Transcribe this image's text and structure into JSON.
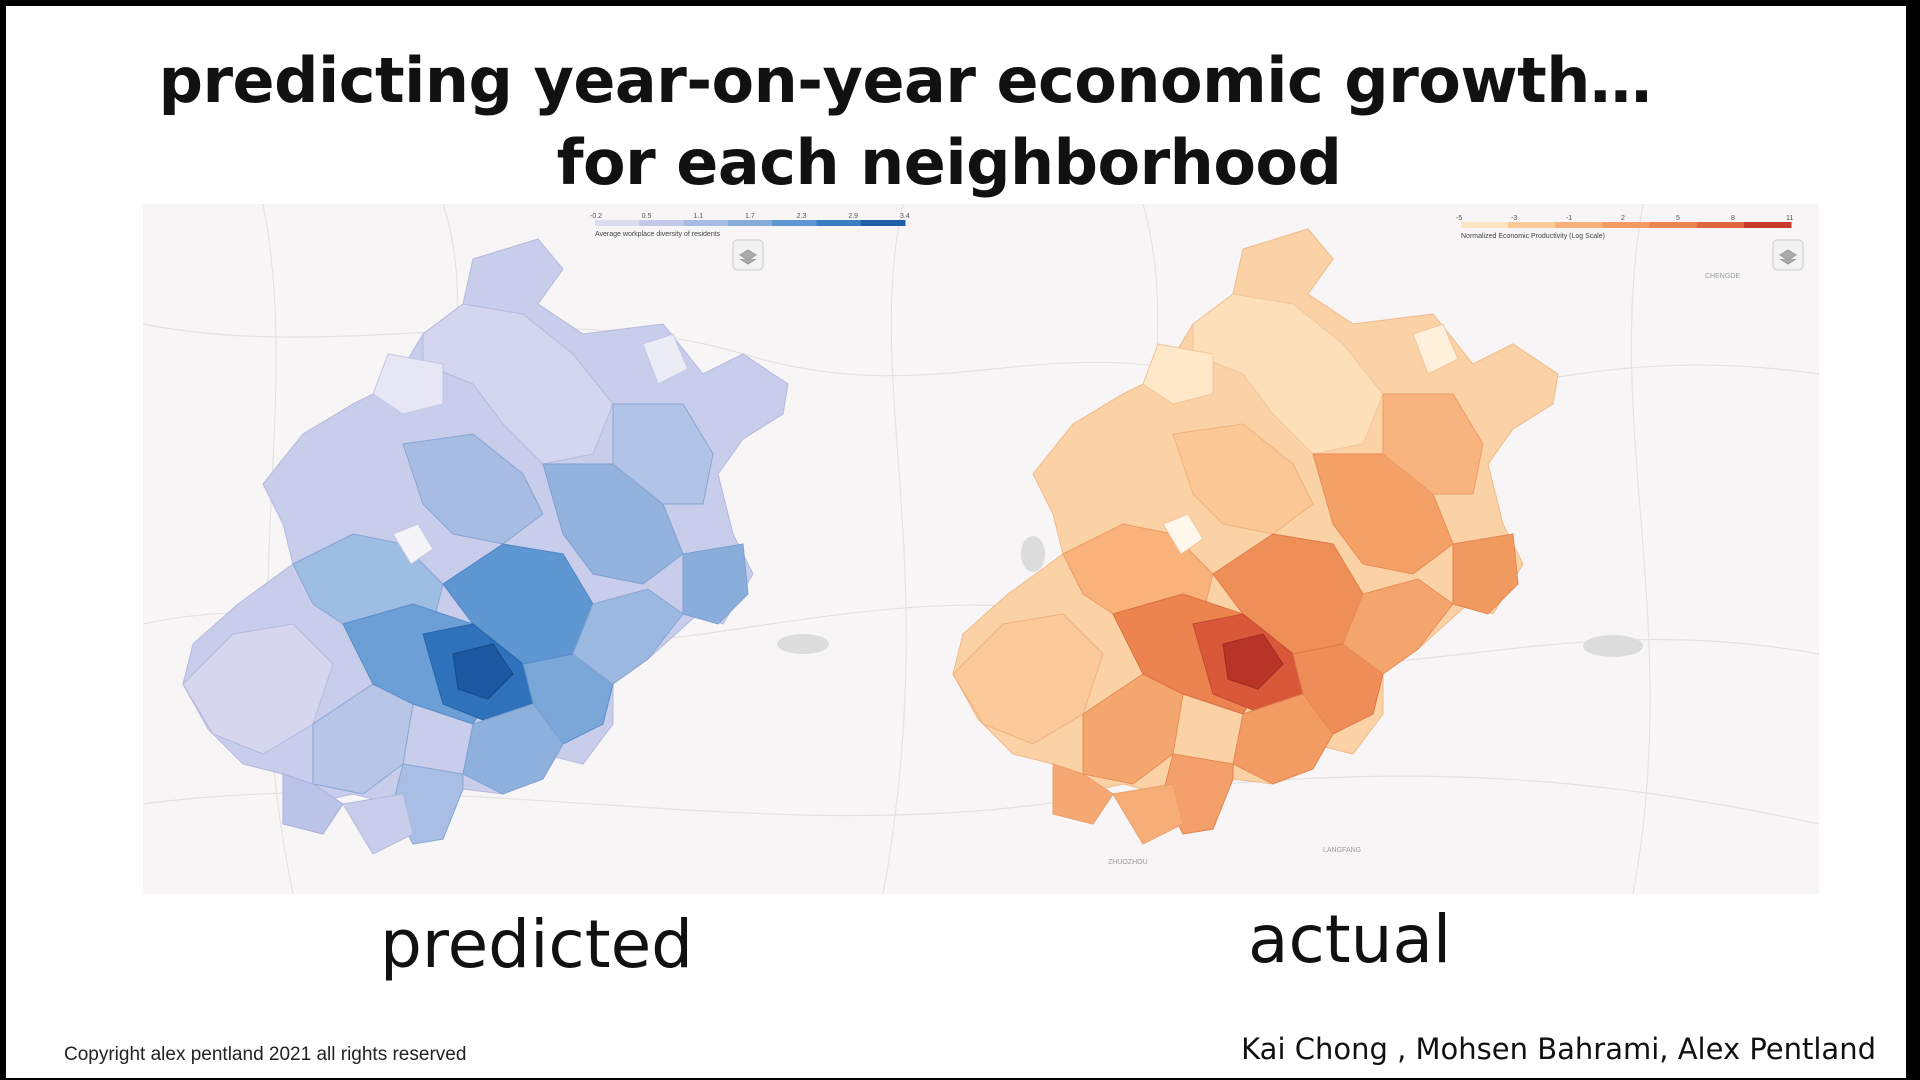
{
  "slide": {
    "title_line1": "predicting year-on-year economic growth…",
    "title_line2": "for each neighborhood",
    "caption_left": "predicted",
    "caption_right": "actual",
    "copyright": "Copyright alex pentland 2021 all rights reserved",
    "authors": "Kai Chong , Mohsen Bahrami, Alex Pentland"
  },
  "maps": {
    "predicted": {
      "legend_title": "Average workplace diversity of residents",
      "legend_ticks": [
        "-0.2",
        "0.5",
        "1.1",
        "1.7",
        "2.3",
        "2.9",
        "3.4"
      ],
      "colors": [
        "#dcdcf0",
        "#c4c9e9",
        "#a6bce3",
        "#86acdc",
        "#5f97d2",
        "#3a7dc2",
        "#1f5ea8"
      ],
      "layers_icon": "layers-icon"
    },
    "actual": {
      "legend_title": "Normalized Economic Productivity (Log Scale)",
      "legend_ticks": [
        "-5",
        "-3",
        "-1",
        "2",
        "5",
        "8",
        "11"
      ],
      "colors": [
        "#fde4c2",
        "#fccb98",
        "#f8b27a",
        "#f39a62",
        "#ec8450",
        "#e06640",
        "#c63b2c"
      ],
      "layers_icon": "layers-icon"
    },
    "place_labels": [
      "CHENGDE",
      "LANGFANG",
      "ZHUOZHOU"
    ]
  }
}
